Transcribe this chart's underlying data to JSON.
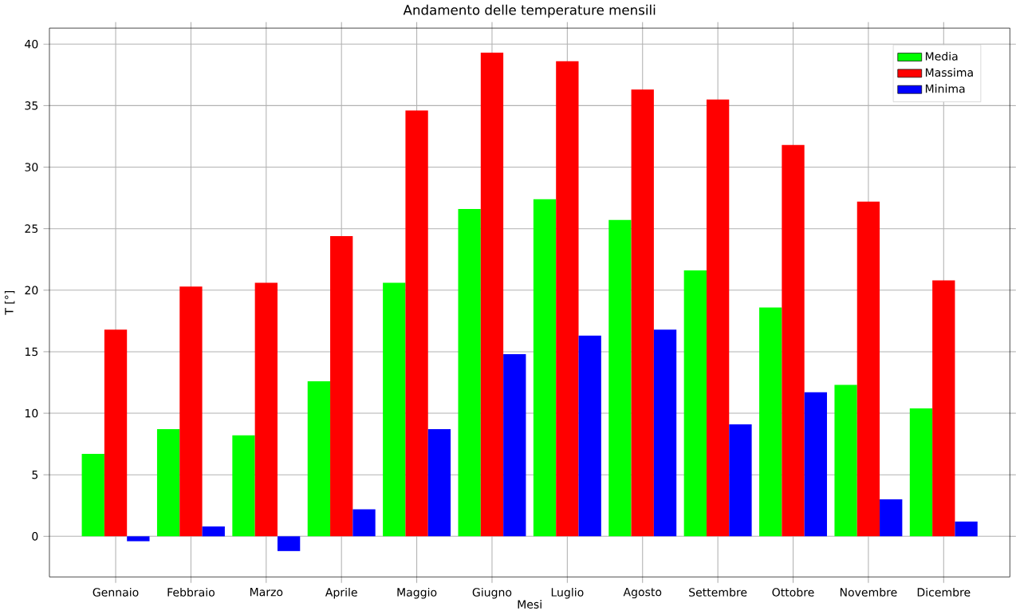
{
  "chart_data": {
    "type": "bar",
    "title": "Andamento delle temperature mensili",
    "xlabel": "Mesi",
    "ylabel": "T [°]",
    "categories": [
      "Gennaio",
      "Febbraio",
      "Marzo",
      "Aprile",
      "Maggio",
      "Giugno",
      "Luglio",
      "Agosto",
      "Settembre",
      "Ottobre",
      "Novembre",
      "Dicembre"
    ],
    "series": [
      {
        "name": "Media",
        "color": "#00ff00",
        "values": [
          6.7,
          8.7,
          8.2,
          12.6,
          20.6,
          26.6,
          27.4,
          25.7,
          21.6,
          18.6,
          12.3,
          10.4
        ]
      },
      {
        "name": "Massima",
        "color": "#ff0000",
        "values": [
          16.8,
          20.3,
          20.6,
          24.4,
          34.6,
          39.3,
          38.6,
          36.3,
          35.5,
          31.8,
          27.2,
          20.8
        ]
      },
      {
        "name": "Minima",
        "color": "#0000ff",
        "values": [
          -0.4,
          0.8,
          -1.2,
          2.2,
          8.7,
          14.8,
          16.3,
          16.8,
          9.1,
          11.7,
          3.0,
          1.2
        ]
      }
    ],
    "ylim": [
      -3.3,
      41.3
    ],
    "yticks": [
      0,
      5,
      10,
      15,
      20,
      25,
      30,
      35,
      40
    ],
    "grid": true,
    "legend": "top right"
  }
}
